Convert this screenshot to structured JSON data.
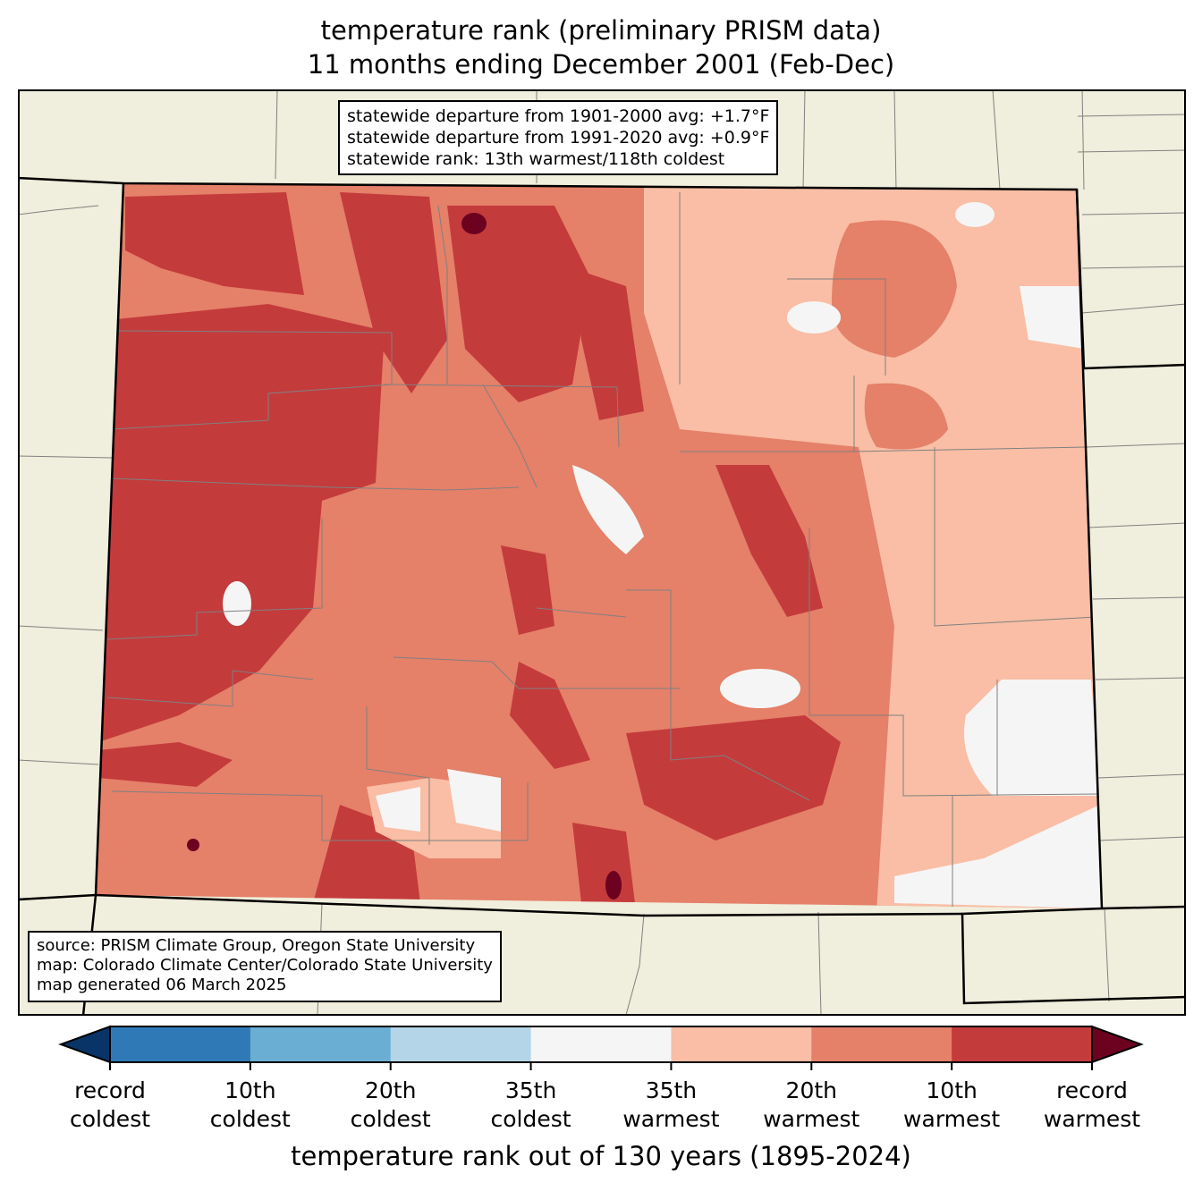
{
  "title": {
    "line1": "temperature rank (preliminary PRISM data)",
    "line2": "11 months ending December 2001 (Feb-Dec)"
  },
  "stats_box": {
    "line1": "statewide departure from 1901-2000 avg: +1.7°F",
    "line2": "statewide departure from 1991-2020 avg: +0.9°F",
    "line3": "statewide rank: 13th warmest/118th coldest"
  },
  "source_box": {
    "line1": "source: PRISM Climate Group, Oregon State University",
    "line2": "map: Colorado Climate Center/Colorado State University",
    "line3": "map generated 06 March 2025"
  },
  "colorbar": {
    "title": "temperature rank out of 130 years (1895-2024)",
    "colors": [
      "#083467",
      "#2f7ab6",
      "#6aaed3",
      "#b3d5e7",
      "#f5f5f5",
      "#f9bea5",
      "#e58069",
      "#c43b3c",
      "#6c0120"
    ],
    "ticks": [
      {
        "l1": "record",
        "l2": "coldest"
      },
      {
        "l1": "10th",
        "l2": "coldest"
      },
      {
        "l1": "20th",
        "l2": "coldest"
      },
      {
        "l1": "35th",
        "l2": "coldest"
      },
      {
        "l1": "35th",
        "l2": "warmest"
      },
      {
        "l1": "20th",
        "l2": "warmest"
      },
      {
        "l1": "10th",
        "l2": "warmest"
      },
      {
        "l1": "record",
        "l2": "warmest"
      }
    ]
  },
  "map_colors": {
    "land": "#f0eedc",
    "county": "#808080",
    "border": "#000000"
  }
}
